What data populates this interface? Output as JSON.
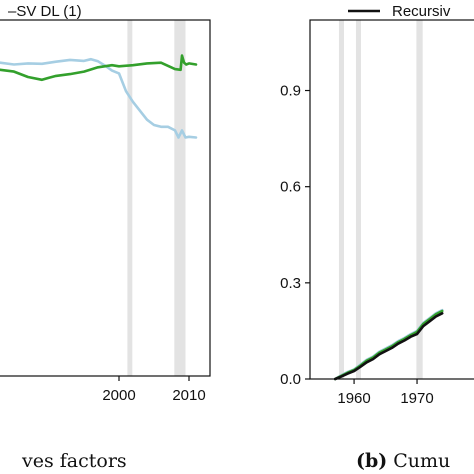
{
  "chart_data": [
    {
      "type": "line",
      "panel": "left",
      "caption": "ves factors",
      "legend": [
        {
          "label": "–SV DL (1)",
          "color": "#111111"
        }
      ],
      "x_ticks": [
        2000,
        2010
      ],
      "xlim": [
        1983,
        2013
      ],
      "ylim": [
        0,
        1
      ],
      "recession_bands": [
        [
          2001.2,
          2001.9
        ],
        [
          2007.9,
          2009.5
        ]
      ],
      "series": [
        {
          "color": "#a6cee3",
          "x": [
            1983,
            1985,
            1987,
            1989,
            1991,
            1993,
            1995,
            1996,
            1997,
            1998,
            1999,
            2000,
            2001,
            2002,
            2003,
            2004,
            2005,
            2006,
            2007,
            2008,
            2008.5,
            2009,
            2009.5,
            2010,
            2011
          ],
          "y": [
            0.88,
            0.875,
            0.878,
            0.877,
            0.883,
            0.888,
            0.885,
            0.89,
            0.884,
            0.872,
            0.858,
            0.85,
            0.8,
            0.77,
            0.745,
            0.72,
            0.705,
            0.7,
            0.7,
            0.69,
            0.67,
            0.69,
            0.67,
            0.672,
            0.67
          ]
        },
        {
          "color": "#33a02c",
          "x": [
            1983,
            1985,
            1987,
            1989,
            1990,
            1991,
            1993,
            1995,
            1997,
            1999,
            2000,
            2002,
            2004,
            2006,
            2008,
            2008.8,
            2009,
            2009.3,
            2009.6,
            2010,
            2011
          ],
          "y": [
            0.86,
            0.855,
            0.84,
            0.832,
            0.838,
            0.843,
            0.848,
            0.855,
            0.867,
            0.873,
            0.87,
            0.873,
            0.878,
            0.88,
            0.862,
            0.86,
            0.9,
            0.88,
            0.875,
            0.878,
            0.875
          ]
        }
      ]
    },
    {
      "type": "line",
      "panel": "right",
      "caption_label": "(b)",
      "caption": "Cumu",
      "legend": [
        {
          "label": "Recursiv",
          "color": "#111111"
        }
      ],
      "x_ticks": [
        1960,
        1970
      ],
      "y_ticks": [
        0.0,
        0.3,
        0.6,
        0.9
      ],
      "xlim": [
        1953,
        1980
      ],
      "ylim": [
        0,
        1.12
      ],
      "recession_bands": [
        [
          1957.6,
          1958.4
        ],
        [
          1960.3,
          1961.1
        ],
        [
          1969.9,
          1970.9
        ]
      ],
      "series": [
        {
          "color": "#a6cee3",
          "x": [
            1957,
            1958,
            1959,
            1960,
            1961,
            1962,
            1963,
            1964,
            1965,
            1966,
            1967,
            1968,
            1969,
            1970,
            1971,
            1972,
            1973,
            1974
          ],
          "y": [
            0.0,
            0.012,
            0.022,
            0.03,
            0.045,
            0.06,
            0.07,
            0.085,
            0.095,
            0.105,
            0.118,
            0.128,
            0.14,
            0.15,
            0.175,
            0.19,
            0.205,
            0.215
          ]
        },
        {
          "color": "#33a02c",
          "x": [
            1957,
            1958,
            1959,
            1960,
            1961,
            1962,
            1963,
            1964,
            1965,
            1966,
            1967,
            1968,
            1969,
            1970,
            1971,
            1972,
            1973,
            1974
          ],
          "y": [
            0.0,
            0.01,
            0.02,
            0.028,
            0.042,
            0.057,
            0.067,
            0.082,
            0.092,
            0.102,
            0.115,
            0.125,
            0.137,
            0.147,
            0.172,
            0.187,
            0.202,
            0.212
          ]
        },
        {
          "color": "#111111",
          "x": [
            1957,
            1958,
            1959,
            1960,
            1961,
            1962,
            1963,
            1964,
            1965,
            1966,
            1967,
            1968,
            1969,
            1970,
            1971,
            1972,
            1973,
            1974
          ],
          "y": [
            0.0,
            0.008,
            0.017,
            0.025,
            0.038,
            0.052,
            0.062,
            0.077,
            0.087,
            0.097,
            0.11,
            0.12,
            0.132,
            0.14,
            0.165,
            0.18,
            0.195,
            0.205
          ]
        }
      ]
    }
  ]
}
